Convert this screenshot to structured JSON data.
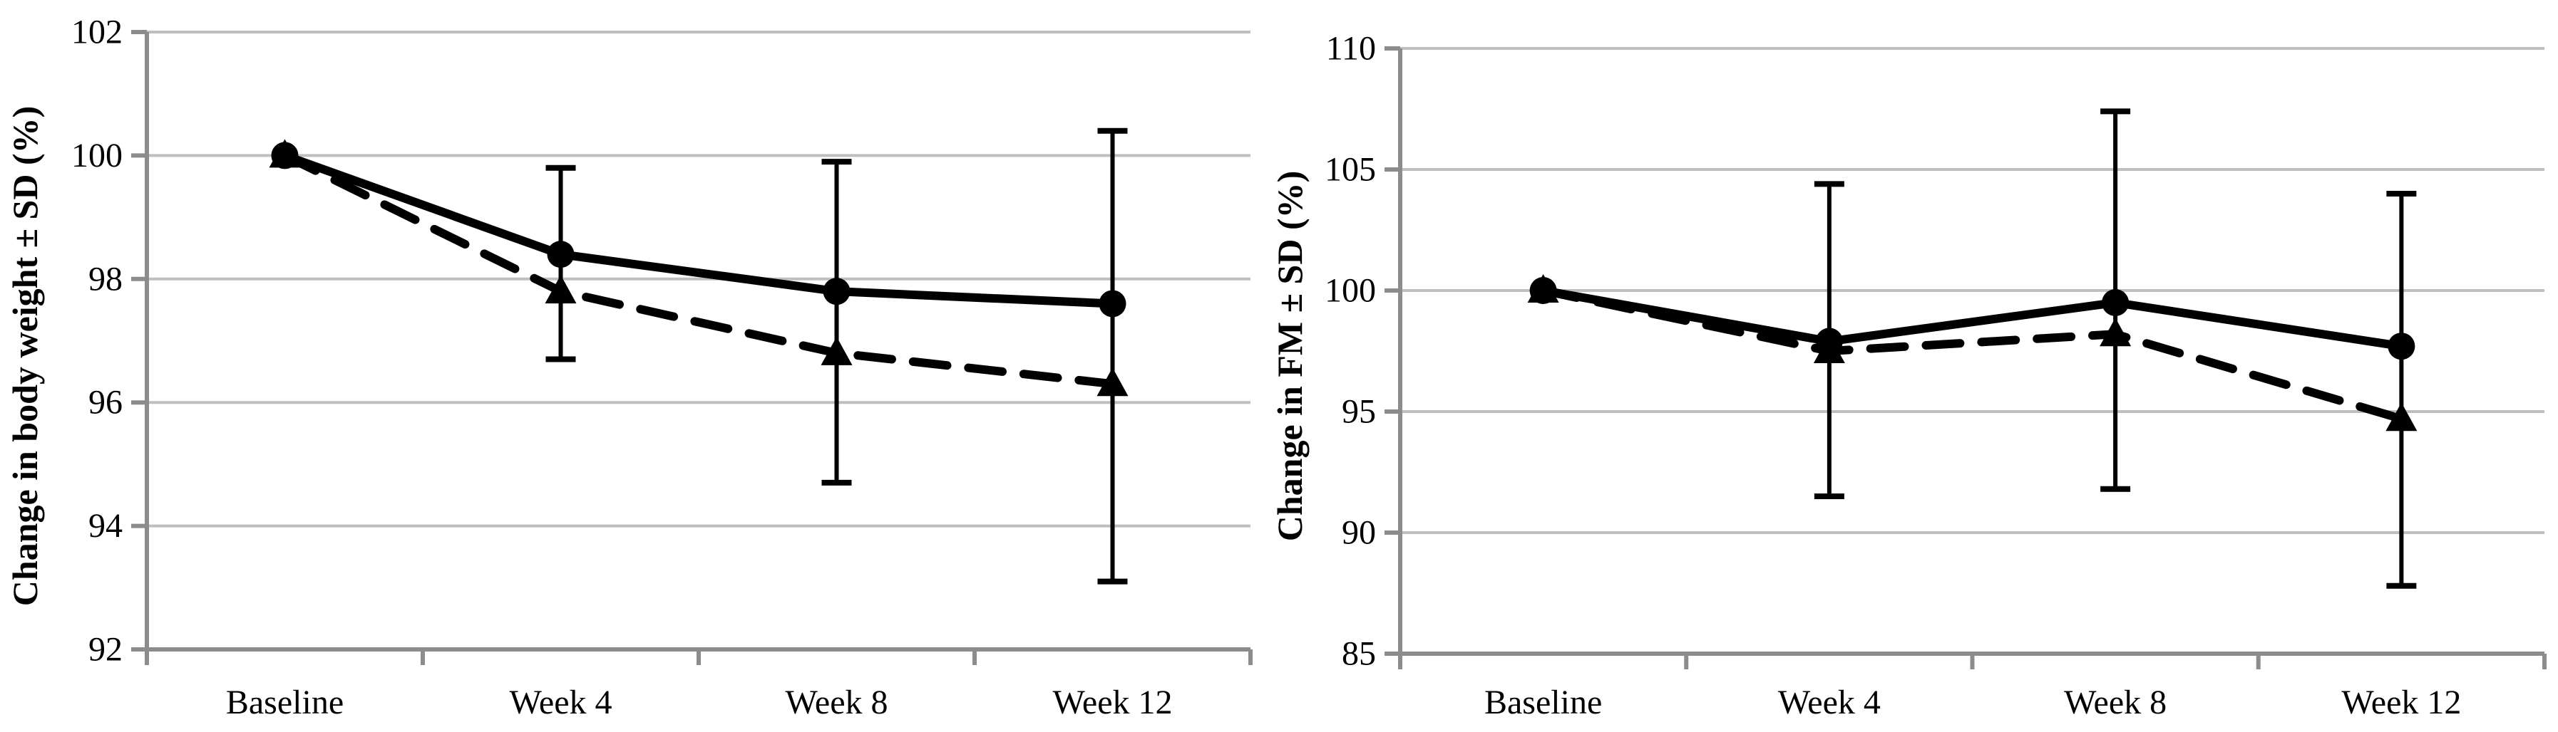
{
  "figure": {
    "background": "#ffffff",
    "grid_color": "#bfbfbf",
    "axis_color": "#8c8c8c",
    "data_color": "#000000"
  },
  "chart_data": [
    {
      "type": "line",
      "title": "",
      "xlabel": "",
      "ylabel": "Change in body weight ± SD (%)",
      "categories": [
        "Baseline",
        "Week 4",
        "Week 8",
        "Week 12"
      ],
      "ylim": [
        92,
        102
      ],
      "yticks": [
        "92",
        "94",
        "96",
        "98",
        "100",
        "102"
      ],
      "ytick_values": [
        92,
        94,
        96,
        98,
        100,
        102
      ],
      "grid": true,
      "legend_position": "none",
      "series": [
        {
          "name": "solid-circle",
          "line_style": "solid",
          "marker": "circle",
          "values": [
            100.0,
            98.4,
            97.8,
            97.6
          ]
        },
        {
          "name": "dashed-triangle",
          "line_style": "dashed",
          "marker": "triangle",
          "values": [
            100.0,
            97.8,
            96.8,
            96.3
          ]
        }
      ],
      "error_bars": [
        {
          "category": "Week 4",
          "low": 96.7,
          "high": 99.8
        },
        {
          "category": "Week 8",
          "low": 94.7,
          "high": 99.9
        },
        {
          "category": "Week 12",
          "low": 93.1,
          "high": 100.4
        }
      ]
    },
    {
      "type": "line",
      "title": "",
      "xlabel": "",
      "ylabel": "Change in FM ± SD (%)",
      "categories": [
        "Baseline",
        "Week 4",
        "Week 8",
        "Week 12"
      ],
      "ylim": [
        85,
        110
      ],
      "yticks": [
        "85",
        "90",
        "95",
        "100",
        "105",
        "110"
      ],
      "ytick_values": [
        85,
        90,
        95,
        100,
        105,
        110
      ],
      "grid": true,
      "legend_position": "none",
      "series": [
        {
          "name": "solid-circle",
          "line_style": "solid",
          "marker": "circle",
          "values": [
            100.0,
            97.9,
            99.5,
            97.7
          ]
        },
        {
          "name": "dashed-triangle",
          "line_style": "dashed",
          "marker": "triangle",
          "values": [
            100.0,
            97.5,
            98.2,
            94.7
          ]
        }
      ],
      "error_bars": [
        {
          "category": "Week 4",
          "low": 91.5,
          "high": 104.4
        },
        {
          "category": "Week 8",
          "low": 91.8,
          "high": 107.4
        },
        {
          "category": "Week 12",
          "low": 87.8,
          "high": 104.0
        }
      ]
    }
  ]
}
